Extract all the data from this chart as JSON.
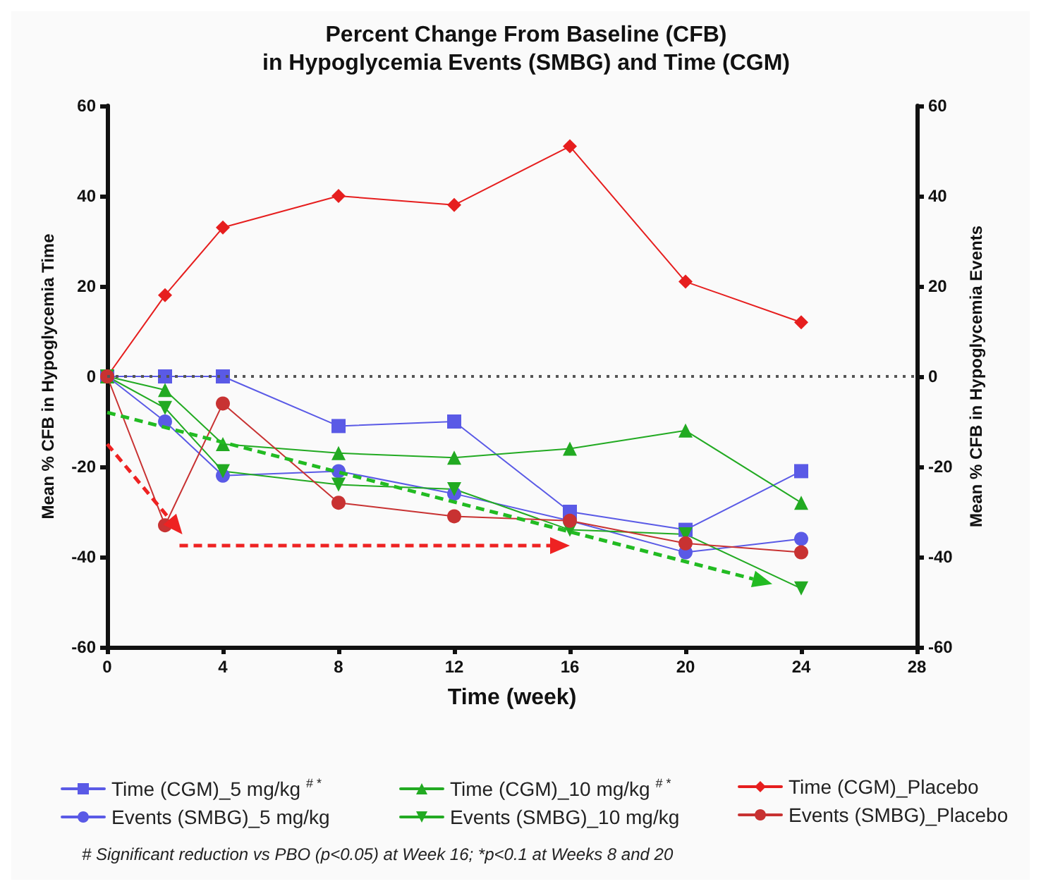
{
  "chart_data": {
    "type": "line",
    "title": "Percent Change From Baseline (CFB)\nin Hypoglycemia Events (SMBG) and Time (CGM)",
    "xlabel": "Time (week)",
    "ylabel": "Mean % CFB in Hypoglycemia Time",
    "y2label": "Mean % CFB in Hypoglycemia Events",
    "x": [
      0,
      2,
      4,
      8,
      12,
      16,
      20,
      24
    ],
    "series": [
      {
        "name": "Time (CGM)_5 mg/kg $^{# *}$",
        "color": "#5a5ae6",
        "marker": "square",
        "values": [
          0,
          0,
          0,
          -11,
          -10,
          -30,
          -34,
          -21
        ]
      },
      {
        "name": "Events (SMBG)_5 mg/kg",
        "color": "#5a5ae6",
        "marker": "circle",
        "values": [
          0,
          -10,
          -22,
          -21,
          -26,
          -32,
          -39,
          -36
        ]
      },
      {
        "name": "Time (CGM)_10 mg/kg $^{# *}$",
        "color": "#22aa22",
        "marker": "triangle",
        "values": [
          0,
          -3,
          -15,
          -17,
          -18,
          -16,
          -12,
          -28
        ]
      },
      {
        "name": "Events (SMBG)_10 mg/kg",
        "color": "#22aa22",
        "marker": "triangle-down",
        "values": [
          0,
          -7,
          -21,
          -24,
          -25,
          -34,
          -35,
          -47
        ]
      },
      {
        "name": "Time (CGM)_Placebo",
        "color": "#e61e1e",
        "marker": "diamond",
        "values": [
          0,
          18,
          33,
          40,
          38,
          51,
          21,
          12
        ]
      },
      {
        "name": "Events (SMBG)_Placebo",
        "color": "#c83232",
        "marker": "circle",
        "values": [
          0,
          -33,
          -6,
          -28,
          -31,
          -32,
          -37,
          -39
        ]
      }
    ],
    "xlim": [
      0,
      28
    ],
    "xticks": [
      0,
      4,
      8,
      12,
      16,
      20,
      24,
      28
    ],
    "ylim": [
      -60,
      60
    ],
    "yticks": [
      -60,
      -40,
      -20,
      0,
      20,
      40,
      60
    ],
    "y2lim": [
      -60,
      60
    ],
    "y2ticks": [
      -60,
      -40,
      -20,
      0,
      20,
      40,
      60
    ],
    "ref_lines": [
      {
        "axis": "y",
        "value": 0,
        "color": "#555555",
        "line_style": "dotted"
      }
    ],
    "legend": "bottom",
    "grid": false,
    "annotations": [
      "# Significant reduction vs PBO (p<0.05) at Week 16; *p<0.1 at Weeks 8 and 20"
    ]
  }
}
